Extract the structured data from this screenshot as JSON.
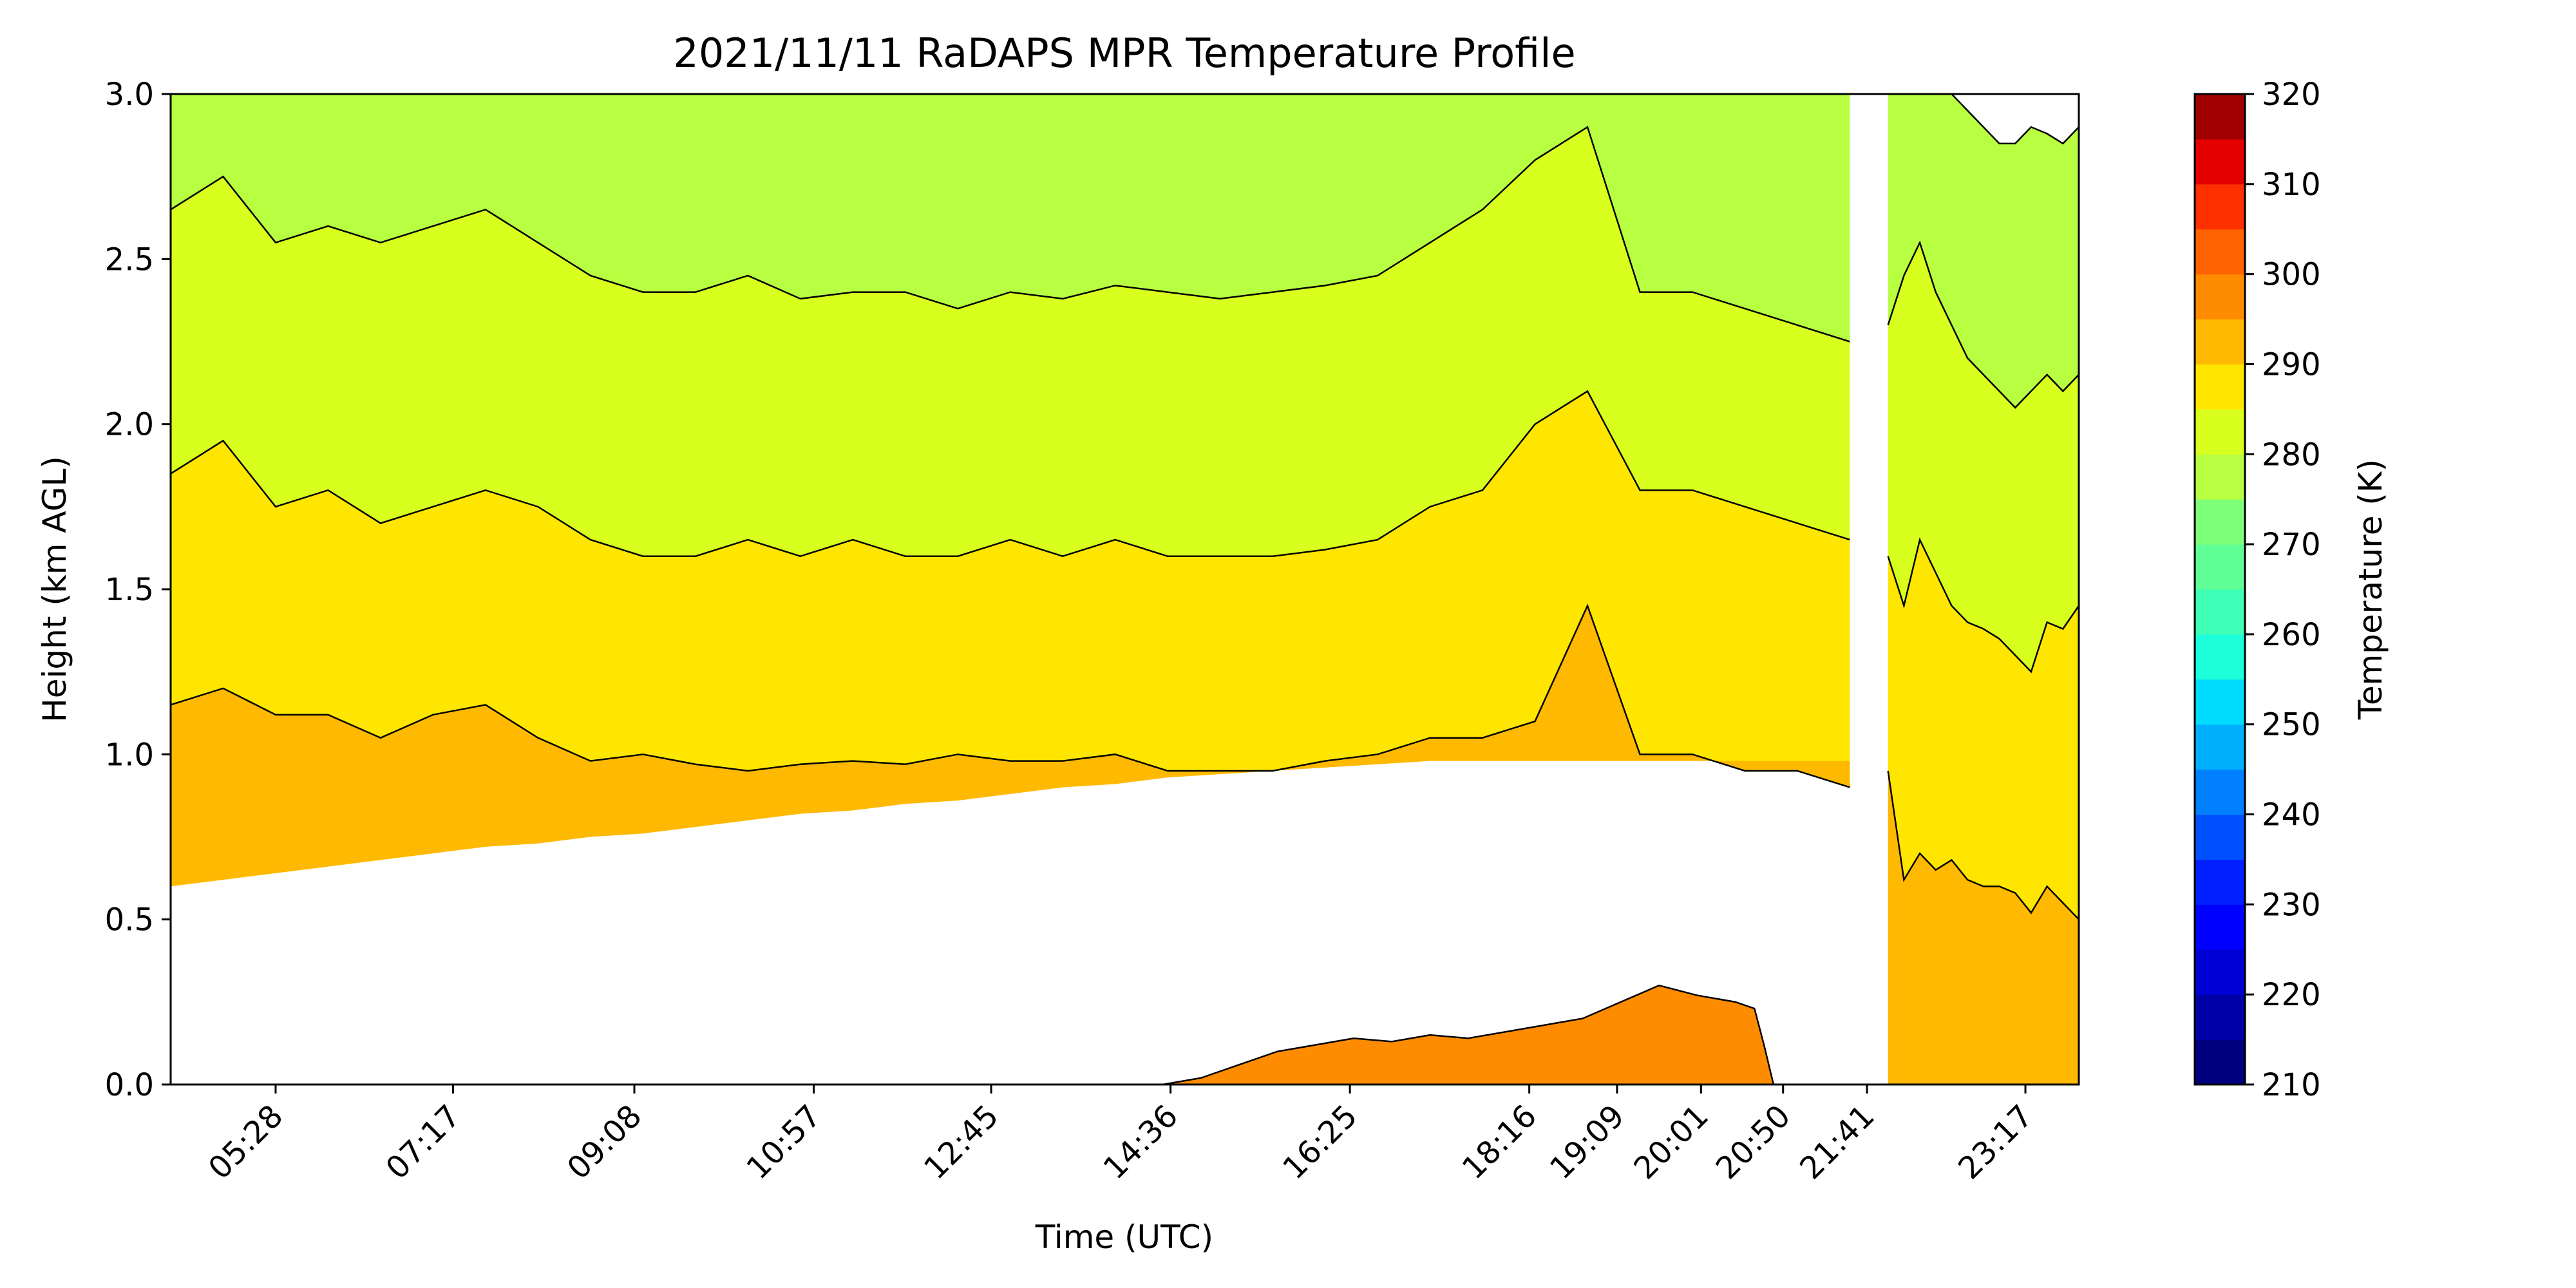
{
  "chart_data": {
    "type": "heatmap",
    "title": "2021/11/11 RaDAPS MPR Temperature Profile",
    "xlabel": "Time (UTC)",
    "ylabel": "Height (km AGL)",
    "x_tick_labels": [
      "05:28",
      "07:17",
      "09:08",
      "10:57",
      "12:45",
      "14:36",
      "16:25",
      "18:16",
      "19:09",
      "20:01",
      "20:50",
      "21:41",
      "23:17"
    ],
    "ylim": [
      0,
      3.0
    ],
    "y_ticks": [
      0.0,
      0.5,
      1.0,
      1.5,
      2.0,
      2.5,
      3.0
    ],
    "colorbar": {
      "label": "Temperature (K)",
      "range": [
        210,
        320
      ],
      "ticks": [
        210,
        220,
        230,
        240,
        250,
        260,
        270,
        280,
        290,
        300,
        310,
        320
      ],
      "levels": [
        {
          "from": 210,
          "to": 215,
          "color": "#00007f"
        },
        {
          "from": 215,
          "to": 220,
          "color": "#0000a8"
        },
        {
          "from": 220,
          "to": 225,
          "color": "#0000d4"
        },
        {
          "from": 225,
          "to": 230,
          "color": "#0000ff"
        },
        {
          "from": 230,
          "to": 235,
          "color": "#0020ff"
        },
        {
          "from": 235,
          "to": 240,
          "color": "#0050ff"
        },
        {
          "from": 240,
          "to": 245,
          "color": "#0080ff"
        },
        {
          "from": 245,
          "to": 250,
          "color": "#00b0ff"
        },
        {
          "from": 250,
          "to": 255,
          "color": "#00dcfe"
        },
        {
          "from": 255,
          "to": 260,
          "color": "#1cffda"
        },
        {
          "from": 260,
          "to": 265,
          "color": "#3fffb7"
        },
        {
          "from": 265,
          "to": 270,
          "color": "#60ff96"
        },
        {
          "from": 270,
          "to": 275,
          "color": "#7dff7a"
        },
        {
          "from": 275,
          "to": 280,
          "color": "#b7ff40"
        },
        {
          "from": 280,
          "to": 285,
          "color": "#d8ff1e"
        },
        {
          "from": 285,
          "to": 290,
          "color": "#ffe600"
        },
        {
          "from": 290,
          "to": 295,
          "color": "#ffb900"
        },
        {
          "from": 295,
          "to": 300,
          "color": "#ff8c00"
        },
        {
          "from": 300,
          "to": 305,
          "color": "#ff6200"
        },
        {
          "from": 305,
          "to": 310,
          "color": "#ff3000"
        },
        {
          "from": 310,
          "to": 315,
          "color": "#e50000"
        },
        {
          "from": 315,
          "to": 320,
          "color": "#a00000"
        }
      ]
    },
    "isotherm_bands": [
      {
        "temperature_range_K": [
          290,
          295
        ],
        "color": "#ffb900",
        "top_km": [
          1.15,
          1.2,
          1.12,
          1.12,
          1.05,
          1.12,
          1.15,
          1.05,
          0.98,
          1.0,
          0.97,
          0.95,
          0.97,
          0.98,
          0.97,
          1.0,
          0.98,
          0.98,
          1.0,
          0.95,
          0.95,
          0.95,
          0.98,
          1.0,
          1.05,
          1.05,
          1.1,
          1.45,
          1.0,
          1.0,
          0.95,
          0.95,
          0.9
        ],
        "bottom_km": [
          0.6,
          0.62,
          0.64,
          0.66,
          0.68,
          0.7,
          0.72,
          0.73,
          0.75,
          0.76,
          0.78,
          0.8,
          0.82,
          0.83,
          0.85,
          0.86,
          0.88,
          0.9,
          0.91,
          0.93,
          0.94,
          0.95,
          0.96,
          0.97,
          0.98,
          0.98,
          0.98,
          0.98,
          0.98,
          0.98,
          0.98,
          0.98,
          0.98
        ]
      },
      {
        "temperature_range_K": [
          285,
          290
        ],
        "color": "#ffe600",
        "top_km": [
          1.85,
          1.95,
          1.75,
          1.8,
          1.7,
          1.75,
          1.8,
          1.75,
          1.65,
          1.6,
          1.6,
          1.65,
          1.6,
          1.65,
          1.6,
          1.6,
          1.65,
          1.6,
          1.65,
          1.6,
          1.6,
          1.6,
          1.62,
          1.65,
          1.75,
          1.8,
          2.0,
          2.1,
          1.8,
          1.8,
          1.75,
          1.7,
          1.65
        ]
      },
      {
        "temperature_range_K": [
          280,
          285
        ],
        "color": "#d8ff1e",
        "top_km": [
          2.65,
          2.75,
          2.55,
          2.6,
          2.55,
          2.6,
          2.65,
          2.55,
          2.45,
          2.4,
          2.4,
          2.45,
          2.38,
          2.4,
          2.4,
          2.35,
          2.4,
          2.38,
          2.42,
          2.4,
          2.38,
          2.4,
          2.42,
          2.45,
          2.55,
          2.65,
          2.8,
          2.9,
          2.4,
          2.4,
          2.35,
          2.3,
          2.25
        ]
      }
    ],
    "surface_layer_295_300K": {
      "color": "#ff8c00",
      "x_frac": [
        0.52,
        0.54,
        0.56,
        0.58,
        0.6,
        0.62,
        0.64,
        0.66,
        0.68,
        0.7,
        0.72,
        0.74,
        0.76,
        0.78,
        0.8,
        0.82,
        0.83,
        0.835,
        0.84
      ],
      "top_km": [
        0.0,
        0.02,
        0.06,
        0.1,
        0.12,
        0.14,
        0.13,
        0.15,
        0.14,
        0.16,
        0.18,
        0.2,
        0.25,
        0.3,
        0.27,
        0.25,
        0.23,
        0.12,
        0.0
      ]
    },
    "after_gap_region": {
      "lower_290_295K_top_km": [
        0.95,
        0.62,
        0.7,
        0.65,
        0.68,
        0.62,
        0.6,
        0.6,
        0.58,
        0.52,
        0.6,
        0.55,
        0.5
      ],
      "mid_285_290K_top_km": [
        1.6,
        1.45,
        1.65,
        1.55,
        1.45,
        1.4,
        1.38,
        1.35,
        1.3,
        1.25,
        1.4,
        1.38,
        1.45
      ],
      "upper_280_285K_top_km": [
        2.3,
        2.45,
        2.55,
        2.4,
        2.3,
        2.2,
        2.15,
        2.1,
        2.05,
        2.1,
        2.15,
        2.1,
        2.15
      ],
      "top_275_280K_top_km": [
        3.0,
        3.0,
        3.0,
        3.0,
        3.0,
        2.95,
        2.9,
        2.85,
        2.85,
        2.9,
        2.88,
        2.85,
        2.9
      ]
    }
  }
}
